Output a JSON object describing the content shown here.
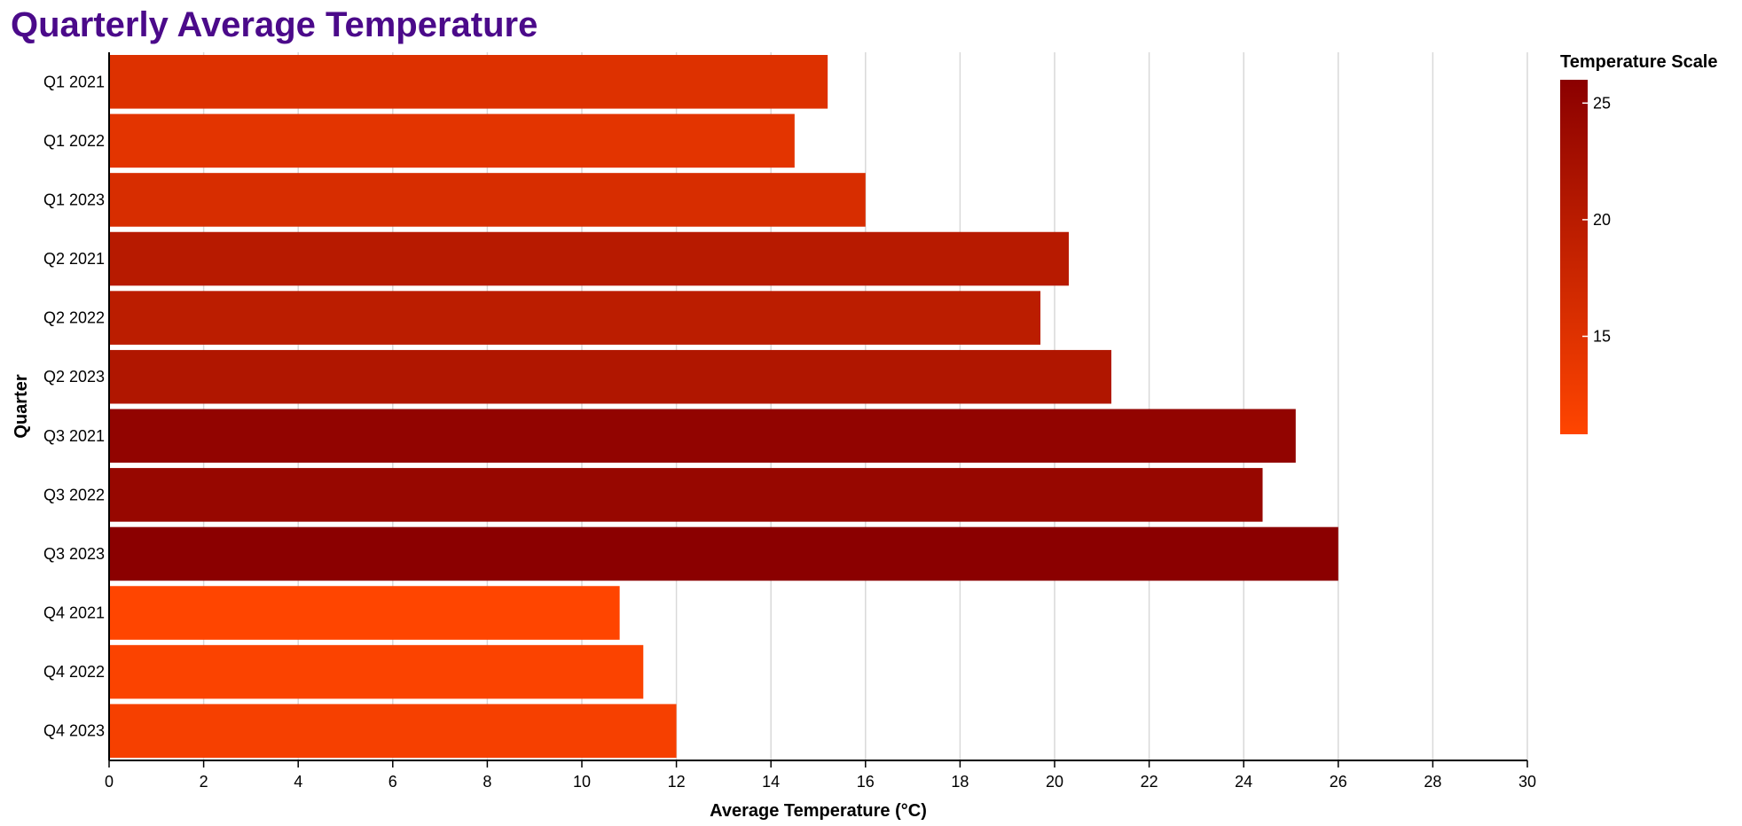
{
  "chart_data": {
    "type": "bar",
    "orientation": "horizontal",
    "title": "Quarterly Average Temperature",
    "title_color": "#4b0a8a",
    "xlabel": "Average Temperature (°C)",
    "ylabel": "Quarter",
    "xlim": [
      0,
      30
    ],
    "x_ticks": [
      0,
      2,
      4,
      6,
      8,
      10,
      12,
      14,
      16,
      18,
      20,
      22,
      24,
      26,
      28,
      30
    ],
    "grid": "vertical",
    "categories": [
      "Q1 2021",
      "Q1 2022",
      "Q1 2023",
      "Q2 2021",
      "Q2 2022",
      "Q2 2023",
      "Q3 2021",
      "Q3 2022",
      "Q3 2023",
      "Q4 2021",
      "Q4 2022",
      "Q4 2023"
    ],
    "values": [
      15.2,
      14.5,
      16.0,
      20.3,
      19.7,
      21.2,
      25.1,
      24.4,
      26.0,
      10.8,
      11.3,
      12.0
    ],
    "color_scale": {
      "title": "Temperature Scale",
      "domain": [
        10.8,
        26.0
      ],
      "ticks": [
        15,
        20,
        25
      ],
      "color_low": "#ff4500",
      "color_high": "#8b0000"
    },
    "legend_position": "right"
  }
}
